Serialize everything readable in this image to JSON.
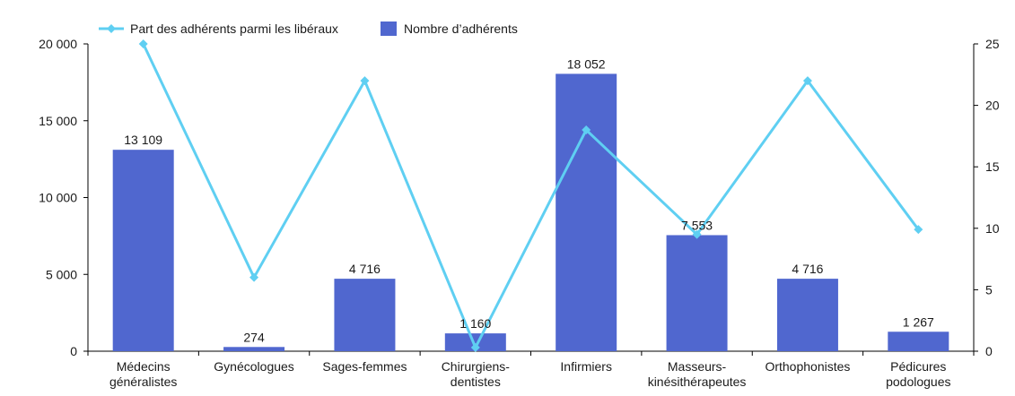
{
  "chart_data": {
    "type": "bar",
    "categories": [
      [
        "Médecins",
        "généralistes"
      ],
      [
        "Gynécologues"
      ],
      [
        "Sages-femmes"
      ],
      [
        "Chirurgiens-",
        "dentistes"
      ],
      [
        "Infirmiers"
      ],
      [
        "Masseurs-",
        "kinésithérapeutes"
      ],
      [
        "Orthophonistes"
      ],
      [
        "Pédicures",
        "podologues"
      ]
    ],
    "series": [
      {
        "name": "Nombre d’adhérents",
        "type": "bar",
        "axis": "left",
        "color": "#5067cf",
        "values": [
          13109,
          274,
          4716,
          1160,
          18052,
          7553,
          4716,
          1267
        ],
        "labels": [
          "13 109",
          "274",
          "4 716",
          "1 160",
          "18 052",
          "7 553",
          "4 716",
          "1 267"
        ]
      },
      {
        "name": "Part des adhérents parmi les libéraux",
        "type": "line",
        "axis": "right",
        "color": "#5fcff2",
        "marker": "diamond",
        "values": [
          25,
          6,
          22,
          0.3,
          18,
          9.5,
          22,
          9.9
        ]
      }
    ],
    "y_left": {
      "ylim": [
        0,
        20000
      ],
      "ticks": [
        0,
        5000,
        10000,
        15000,
        20000
      ],
      "tick_labels": [
        "0",
        "5 000",
        "10 000",
        "15 000",
        "20 000"
      ]
    },
    "y_right": {
      "ylim": [
        0,
        25
      ],
      "ticks": [
        0,
        5,
        10,
        15,
        20,
        25
      ],
      "tick_labels": [
        "0",
        "5",
        "10",
        "15",
        "20",
        "25"
      ]
    },
    "legend_position": "top-left",
    "grid": false
  }
}
